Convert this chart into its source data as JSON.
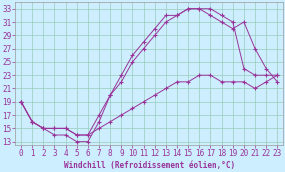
{
  "bg_color": "#cceeff",
  "grid_color": "#99ccbb",
  "line_color": "#993399",
  "xlim": [
    -0.5,
    23.5
  ],
  "ylim": [
    12.5,
    34
  ],
  "yticks": [
    13,
    15,
    17,
    19,
    21,
    23,
    25,
    27,
    29,
    31,
    33
  ],
  "xticks": [
    0,
    1,
    2,
    3,
    4,
    5,
    6,
    7,
    8,
    9,
    10,
    11,
    12,
    13,
    14,
    15,
    16,
    17,
    18,
    19,
    20,
    21,
    22,
    23
  ],
  "xlabel": "Windchill (Refroidissement éolien,°C)",
  "curve1_x": [
    0,
    1,
    2,
    3,
    4,
    5,
    6,
    7,
    8,
    9,
    10,
    11,
    12,
    13,
    14,
    15,
    16,
    17,
    18,
    19,
    20,
    21,
    22,
    23
  ],
  "curve1_y": [
    19,
    16,
    15,
    14,
    14,
    13,
    13,
    16,
    20,
    23,
    26,
    28,
    30,
    32,
    32,
    33,
    33,
    33,
    32,
    31,
    24,
    23,
    23,
    23
  ],
  "curve2_x": [
    0,
    1,
    2,
    3,
    4,
    5,
    6,
    7,
    8,
    9,
    10,
    11,
    12,
    13,
    14,
    15,
    16,
    17,
    18,
    19,
    20,
    21,
    22,
    23
  ],
  "curve2_y": [
    19,
    16,
    15,
    15,
    15,
    14,
    14,
    17,
    20,
    22,
    25,
    27,
    29,
    31,
    32,
    33,
    33,
    32,
    31,
    30,
    31,
    27,
    24,
    22
  ],
  "curve3_x": [
    0,
    1,
    2,
    3,
    4,
    5,
    6,
    7,
    8,
    9,
    10,
    11,
    12,
    13,
    14,
    15,
    16,
    17,
    18,
    19,
    20,
    21,
    22,
    23
  ],
  "curve3_y": [
    19,
    16,
    15,
    15,
    15,
    14,
    14,
    15,
    16,
    17,
    18,
    19,
    20,
    21,
    22,
    22,
    23,
    23,
    22,
    22,
    22,
    21,
    22,
    23
  ],
  "tick_fontsize": 5.5,
  "label_fontsize": 5.5
}
